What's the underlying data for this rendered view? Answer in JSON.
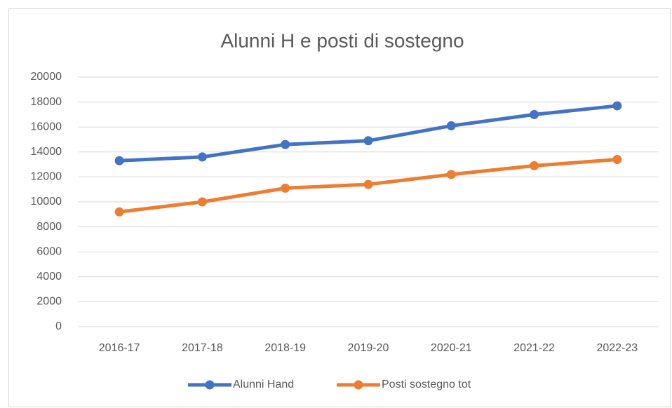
{
  "chart_data": {
    "type": "line",
    "title": "Alunni H e posti di sostegno",
    "categories": [
      "2016-17",
      "2017-18",
      "2018-19",
      "2019-20",
      "2020-21",
      "2021-22",
      "2022-23"
    ],
    "series": [
      {
        "name": "Alunni Hand",
        "color": "#4472c4",
        "values": [
          13300,
          13600,
          14600,
          14900,
          16100,
          17000,
          17700
        ]
      },
      {
        "name": "Posti sostegno tot",
        "color": "#ed7d31",
        "values": [
          9200,
          10000,
          11100,
          11400,
          12200,
          12900,
          13400
        ]
      }
    ],
    "ylim": [
      0,
      20000
    ],
    "yticks": [
      0,
      2000,
      4000,
      6000,
      8000,
      10000,
      12000,
      14000,
      16000,
      18000,
      20000
    ],
    "grid": true,
    "legend": "bottom"
  }
}
